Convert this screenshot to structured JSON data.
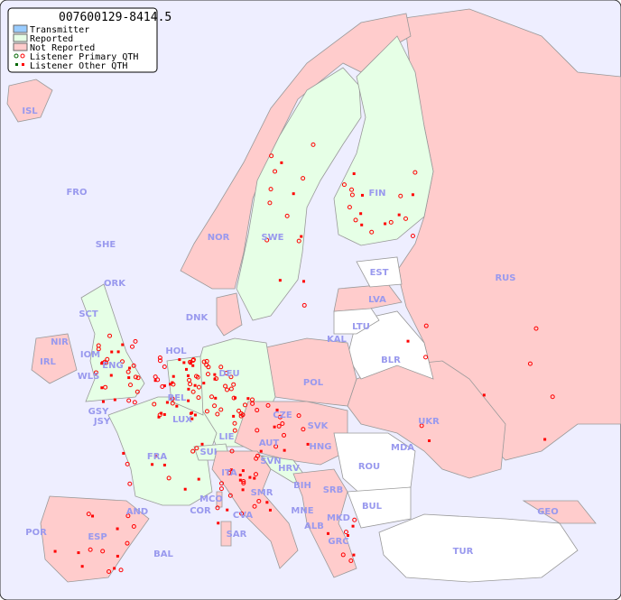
{
  "title": "007600129-8414.5",
  "legend": {
    "items": [
      {
        "label": "Transmitter",
        "color": "#99ccff"
      },
      {
        "label": "Reported",
        "color": "#e6ffe6"
      },
      {
        "label": "Not Reported",
        "color": "#ffcccc"
      },
      {
        "label": "Listener Primary QTH",
        "marker": "open-circle"
      },
      {
        "label": "Listener Other QTH",
        "marker": "small-square"
      }
    ]
  },
  "colors": {
    "sea": "#eeeeff",
    "reported": "#e6ffe6",
    "not_reported": "#ffcccc",
    "other": "#ffffff",
    "label": "#9999ee",
    "marker": "#ff0000",
    "marker_alt": "#006600"
  },
  "countries": {
    "reported": [
      "SWE",
      "FIN",
      "DEU",
      "FRA",
      "HOL",
      "BEL",
      "LUX",
      "SUI",
      "LIE",
      "ENG",
      "SCT",
      "WLS",
      "NIR",
      "IOM",
      "JSY",
      "GSY",
      "SVN",
      "HRV"
    ],
    "not_reported": [
      "ISL",
      "FRO",
      "SHE",
      "NOR",
      "EST",
      "LVA",
      "RUS",
      "DNK",
      "ORK",
      "IRL",
      "KAL",
      "POL",
      "CZE",
      "SVK",
      "UKR",
      "AUT",
      "HNG",
      "ITA",
      "BIH",
      "SMR",
      "MCO",
      "COR",
      "AND",
      "MNE",
      "CVA",
      "ALB",
      "MKD",
      "POR",
      "ESP",
      "SAR",
      "BAL",
      "GRC",
      "SRB",
      "GEO"
    ],
    "labels": [
      "ISL",
      "FRO",
      "SHE",
      "NOR",
      "SWE",
      "FIN",
      "EST",
      "LVA",
      "LTU",
      "RUS",
      "BLR",
      "DNK",
      "ORK",
      "SCT",
      "NIR",
      "IOM",
      "IRL",
      "WLS",
      "ENG",
      "HOL",
      "BEL",
      "DEU",
      "POL",
      "KAL",
      "GSY",
      "JSY",
      "LUX",
      "CZE",
      "SVK",
      "UKR",
      "FRA",
      "SUI",
      "LIE",
      "AUT",
      "HNG",
      "MDA",
      "SVN",
      "HRV",
      "ROU",
      "ITA",
      "BIH",
      "SRB",
      "SMR",
      "MCO",
      "COR",
      "AND",
      "MNE",
      "BUL",
      "GEO",
      "CVA",
      "ALB",
      "MKD",
      "POR",
      "ESP",
      "SAR",
      "BAL",
      "GRC",
      "TUR"
    ]
  }
}
